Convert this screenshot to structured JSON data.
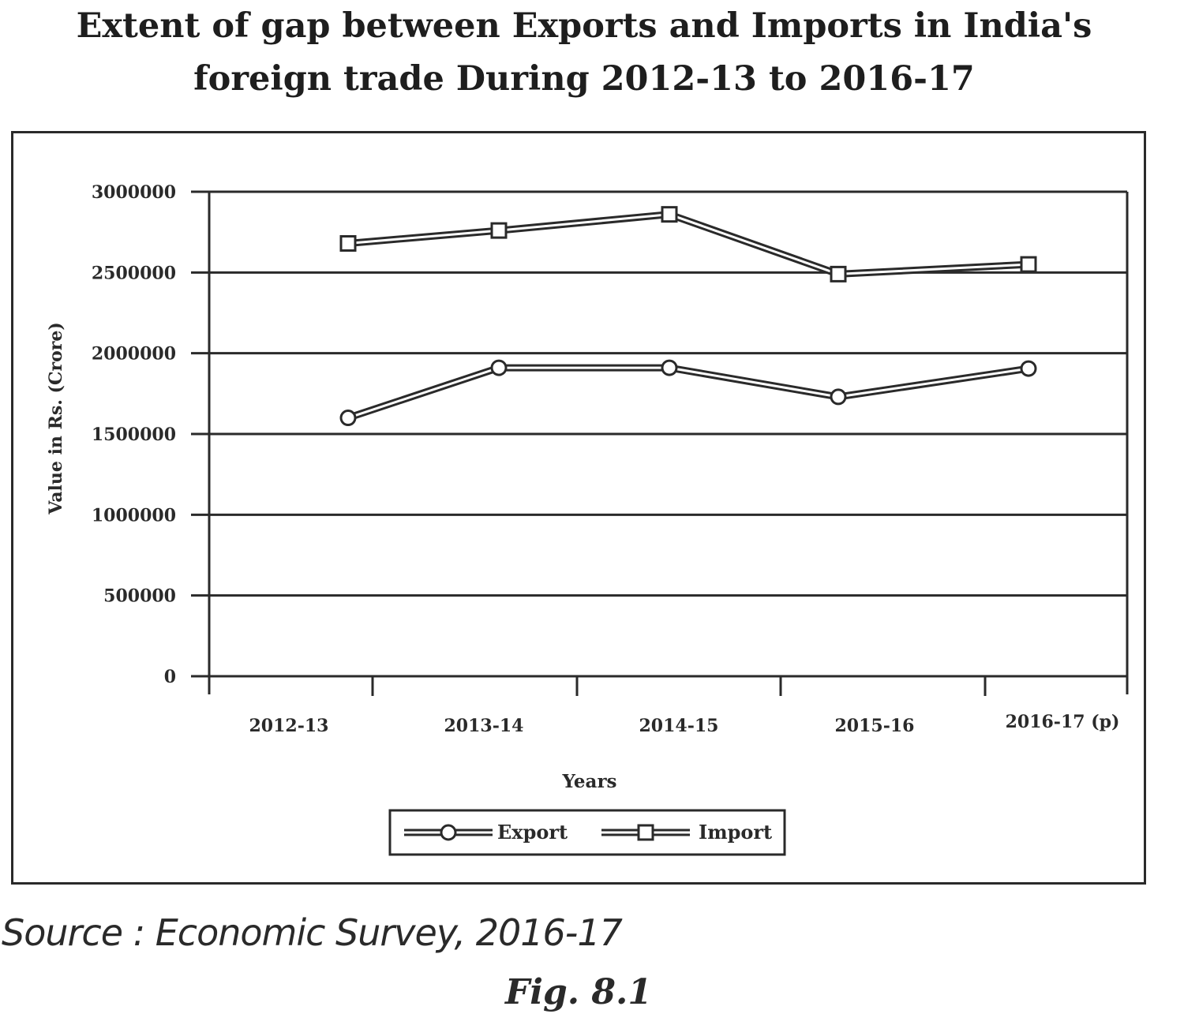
{
  "figure": {
    "title_line1": "Extent of gap between Exports and Imports in India's",
    "title_line2": "foreign trade During 2012-13 to 2016-17",
    "source": "Source : Economic Survey, 2016-17",
    "caption": "Fig. 8.1"
  },
  "chart_data": {
    "type": "line",
    "title": "Extent of gap between Exports and Imports in India's foreign trade During 2012-13 to 2016-17",
    "xlabel": "Years",
    "ylabel": "Value in Rs. (Crore)",
    "categories": [
      "2012-13",
      "2013-14",
      "2014-15",
      "2015-16",
      "2016-17 (p)"
    ],
    "ylim": [
      0,
      3000000
    ],
    "yticks": [
      "0",
      "500000",
      "1000000",
      "1500000",
      "2000000",
      "2500000",
      "3000000"
    ],
    "grid": true,
    "legend_position": "bottom",
    "series": [
      {
        "name": "Export",
        "marker": "circle",
        "values": [
          1600000,
          1910000,
          1910000,
          1730000,
          1905000
        ]
      },
      {
        "name": "Import",
        "marker": "square",
        "values": [
          2680000,
          2760000,
          2860000,
          2490000,
          2550000
        ]
      }
    ],
    "colors": {
      "line": "#2a2a2a",
      "marker_fill": "#ffffff"
    }
  }
}
